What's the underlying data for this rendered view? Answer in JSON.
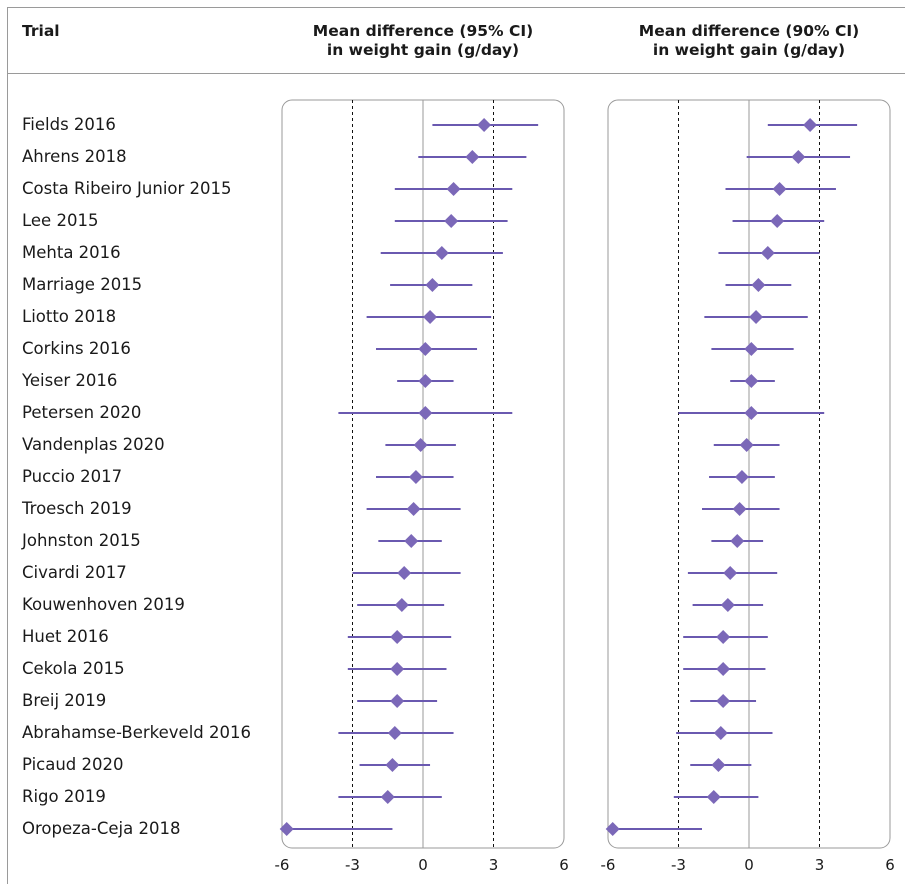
{
  "header": {
    "trial_column": "Trial",
    "left_panel_title_line1": "Mean difference (95% CI)",
    "left_panel_title_line2": "in weight gain (g/day)",
    "right_panel_title_line1": "Mean difference (90% CI)",
    "right_panel_title_line2": "in weight gain (g/day)"
  },
  "colors": {
    "marker": "#7b68b8",
    "line": "#6a59b0",
    "axis": "#9a9a9a"
  },
  "chart_data": [
    {
      "type": "forest",
      "title": "Mean difference (95% CI) in weight gain (g/day)",
      "xlim": [
        -6,
        6
      ],
      "ticks": [
        -6,
        -3,
        0,
        3,
        6
      ],
      "reference_lines": {
        "solid": [
          0
        ],
        "dashed": [
          -3,
          3
        ]
      },
      "categories": [
        "Fields 2016",
        "Ahrens 2018",
        "Costa Ribeiro Junior 2015",
        "Lee 2015",
        "Mehta 2016",
        "Marriage 2015",
        "Liotto 2018",
        "Corkins 2016",
        "Yeiser 2016",
        "Petersen 2020",
        "Vandenplas 2020",
        "Puccio 2017",
        "Troesch 2019",
        "Johnston 2015",
        "Civardi 2017",
        "Kouwenhoven 2019",
        "Huet 2016",
        "Cekola 2015",
        "Breij 2019",
        "Abrahamse-Berkeveld 2016",
        "Picaud 2020",
        "Rigo 2019",
        "Oropeza-Ceja 2018"
      ],
      "estimate": [
        2.6,
        2.1,
        1.3,
        1.2,
        0.8,
        0.4,
        0.3,
        0.1,
        0.1,
        0.1,
        -0.1,
        -0.3,
        -0.4,
        -0.5,
        -0.8,
        -0.9,
        -1.1,
        -1.1,
        -1.1,
        -1.2,
        -1.3,
        -1.5,
        -5.8
      ],
      "lower": [
        0.4,
        -0.2,
        -1.2,
        -1.2,
        -1.8,
        -1.4,
        -2.4,
        -2.0,
        -1.1,
        -3.6,
        -1.6,
        -2.0,
        -2.4,
        -1.9,
        -3.0,
        -2.8,
        -3.2,
        -3.2,
        -2.8,
        -3.6,
        -2.7,
        -3.6,
        -6.0
      ],
      "upper": [
        4.9,
        4.4,
        3.8,
        3.6,
        3.4,
        2.1,
        2.9,
        2.3,
        1.3,
        3.8,
        1.4,
        1.3,
        1.6,
        0.8,
        1.6,
        0.9,
        1.2,
        1.0,
        0.6,
        1.3,
        0.3,
        0.8,
        -1.3
      ]
    },
    {
      "type": "forest",
      "title": "Mean difference (90% CI) in weight gain (g/day)",
      "xlim": [
        -6,
        6
      ],
      "ticks": [
        -6,
        -3,
        0,
        3,
        6
      ],
      "reference_lines": {
        "solid": [
          0
        ],
        "dashed": [
          -3,
          3
        ]
      },
      "categories": [
        "Fields 2016",
        "Ahrens 2018",
        "Costa Ribeiro Junior 2015",
        "Lee 2015",
        "Mehta 2016",
        "Marriage 2015",
        "Liotto 2018",
        "Corkins 2016",
        "Yeiser 2016",
        "Petersen 2020",
        "Vandenplas 2020",
        "Puccio 2017",
        "Troesch 2019",
        "Johnston 2015",
        "Civardi 2017",
        "Kouwenhoven 2019",
        "Huet 2016",
        "Cekola 2015",
        "Breij 2019",
        "Abrahamse-Berkeveld 2016",
        "Picaud 2020",
        "Rigo 2019",
        "Oropeza-Ceja 2018"
      ],
      "estimate": [
        2.6,
        2.1,
        1.3,
        1.2,
        0.8,
        0.4,
        0.3,
        0.1,
        0.1,
        0.1,
        -0.1,
        -0.3,
        -0.4,
        -0.5,
        -0.8,
        -0.9,
        -1.1,
        -1.1,
        -1.1,
        -1.2,
        -1.3,
        -1.5,
        -5.8
      ],
      "lower": [
        0.8,
        -0.1,
        -1.0,
        -0.7,
        -1.3,
        -1.0,
        -1.9,
        -1.6,
        -0.8,
        -3.0,
        -1.5,
        -1.7,
        -2.0,
        -1.6,
        -2.6,
        -2.4,
        -2.8,
        -2.8,
        -2.5,
        -3.1,
        -2.5,
        -3.2,
        -6.0
      ],
      "upper": [
        4.6,
        4.3,
        3.7,
        3.2,
        3.0,
        1.8,
        2.5,
        1.9,
        1.1,
        3.2,
        1.3,
        1.1,
        1.3,
        0.6,
        1.2,
        0.6,
        0.8,
        0.7,
        0.3,
        1.0,
        0.1,
        0.4,
        -2.0
      ]
    }
  ]
}
